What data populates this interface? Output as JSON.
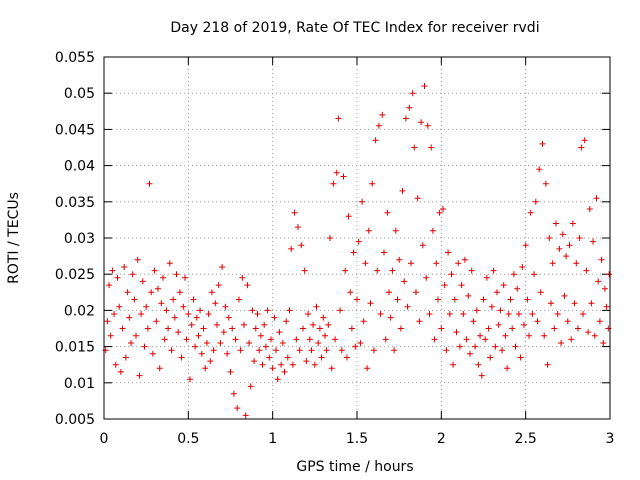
{
  "chart_data": {
    "type": "scatter",
    "title": "Day 218 of 2019, Rate Of TEC Index for receiver rvdi",
    "xlabel": "GPS time / hours",
    "ylabel": "ROTI / TECUs",
    "xlim": [
      0,
      3
    ],
    "ylim": [
      0.005,
      0.055
    ],
    "x_ticks": [
      0,
      0.5,
      1,
      1.5,
      2,
      2.5,
      3
    ],
    "x_tick_labels": [
      "0",
      "0.5",
      "1",
      "1.5",
      "2",
      "2.5",
      "3"
    ],
    "y_ticks": [
      0.005,
      0.01,
      0.015,
      0.02,
      0.025,
      0.03,
      0.035,
      0.04,
      0.045,
      0.05,
      0.055
    ],
    "y_tick_labels": [
      "0.005",
      "0.01",
      "0.015",
      "0.02",
      "0.025",
      "0.03",
      "0.035",
      "0.04",
      "0.045",
      "0.05",
      "0.055"
    ],
    "grid": true,
    "marker": "+",
    "color": "#e00000",
    "series": [
      {
        "name": "ROTI",
        "points": [
          [
            0.01,
            0.0145
          ],
          [
            0.02,
            0.0185
          ],
          [
            0.03,
            0.0235
          ],
          [
            0.04,
            0.0165
          ],
          [
            0.05,
            0.0255
          ],
          [
            0.06,
            0.0195
          ],
          [
            0.07,
            0.0125
          ],
          [
            0.08,
            0.0245
          ],
          [
            0.09,
            0.0205
          ],
          [
            0.1,
            0.0115
          ],
          [
            0.11,
            0.0175
          ],
          [
            0.12,
            0.026
          ],
          [
            0.13,
            0.0135
          ],
          [
            0.14,
            0.0225
          ],
          [
            0.15,
            0.019
          ],
          [
            0.16,
            0.0155
          ],
          [
            0.17,
            0.025
          ],
          [
            0.18,
            0.0215
          ],
          [
            0.19,
            0.0165
          ],
          [
            0.2,
            0.027
          ],
          [
            0.21,
            0.011
          ],
          [
            0.22,
            0.0195
          ],
          [
            0.23,
            0.024
          ],
          [
            0.24,
            0.015
          ],
          [
            0.25,
            0.0205
          ],
          [
            0.26,
            0.0175
          ],
          [
            0.27,
            0.0375
          ],
          [
            0.28,
            0.0225
          ],
          [
            0.29,
            0.014
          ],
          [
            0.3,
            0.0255
          ],
          [
            0.31,
            0.0185
          ],
          [
            0.32,
            0.023
          ],
          [
            0.33,
            0.012
          ],
          [
            0.34,
            0.021
          ],
          [
            0.35,
            0.0245
          ],
          [
            0.36,
            0.016
          ],
          [
            0.37,
            0.02
          ],
          [
            0.38,
            0.0175
          ],
          [
            0.39,
            0.0265
          ],
          [
            0.4,
            0.0145
          ],
          [
            0.41,
            0.0215
          ],
          [
            0.42,
            0.019
          ],
          [
            0.43,
            0.025
          ],
          [
            0.44,
            0.017
          ],
          [
            0.45,
            0.0225
          ],
          [
            0.46,
            0.0135
          ],
          [
            0.47,
            0.0205
          ],
          [
            0.48,
            0.0245
          ],
          [
            0.49,
            0.016
          ],
          [
            0.5,
            0.0195
          ],
          [
            0.51,
            0.0105
          ],
          [
            0.52,
            0.018
          ],
          [
            0.53,
            0.0215
          ],
          [
            0.54,
            0.015
          ],
          [
            0.55,
            0.019
          ],
          [
            0.56,
            0.0165
          ],
          [
            0.57,
            0.02
          ],
          [
            0.58,
            0.014
          ],
          [
            0.59,
            0.0175
          ],
          [
            0.6,
            0.012
          ],
          [
            0.61,
            0.0155
          ],
          [
            0.62,
            0.0195
          ],
          [
            0.63,
            0.013
          ],
          [
            0.64,
            0.0225
          ],
          [
            0.65,
            0.0145
          ],
          [
            0.66,
            0.021
          ],
          [
            0.67,
            0.018
          ],
          [
            0.68,
            0.0235
          ],
          [
            0.69,
            0.0155
          ],
          [
            0.7,
            0.026
          ],
          [
            0.71,
            0.017
          ],
          [
            0.72,
            0.0205
          ],
          [
            0.73,
            0.014
          ],
          [
            0.74,
            0.019
          ],
          [
            0.75,
            0.0115
          ],
          [
            0.76,
            0.0175
          ],
          [
            0.77,
            0.0085
          ],
          [
            0.78,
            0.016
          ],
          [
            0.79,
            0.0065
          ],
          [
            0.8,
            0.0215
          ],
          [
            0.81,
            0.0145
          ],
          [
            0.82,
            0.0245
          ],
          [
            0.83,
            0.018
          ],
          [
            0.84,
            0.0055
          ],
          [
            0.85,
            0.0235
          ],
          [
            0.86,
            0.0155
          ],
          [
            0.87,
            0.0095
          ],
          [
            0.88,
            0.02
          ],
          [
            0.89,
            0.013
          ],
          [
            0.9,
            0.0175
          ],
          [
            0.91,
            0.0195
          ],
          [
            0.92,
            0.0145
          ],
          [
            0.93,
            0.0165
          ],
          [
            0.94,
            0.0125
          ],
          [
            0.95,
            0.018
          ],
          [
            0.96,
            0.015
          ],
          [
            0.97,
            0.02
          ],
          [
            0.98,
            0.0135
          ],
          [
            0.99,
            0.016
          ],
          [
            1.0,
            0.012
          ],
          [
            1.01,
            0.019
          ],
          [
            1.02,
            0.0145
          ],
          [
            1.03,
            0.0105
          ],
          [
            1.04,
            0.017
          ],
          [
            1.05,
            0.0125
          ],
          [
            1.06,
            0.0155
          ],
          [
            1.07,
            0.0115
          ],
          [
            1.08,
            0.0185
          ],
          [
            1.09,
            0.0135
          ],
          [
            1.1,
            0.02
          ],
          [
            1.11,
            0.0285
          ],
          [
            1.12,
            0.0125
          ],
          [
            1.13,
            0.0335
          ],
          [
            1.14,
            0.016
          ],
          [
            1.15,
            0.0315
          ],
          [
            1.16,
            0.0145
          ],
          [
            1.17,
            0.029
          ],
          [
            1.18,
            0.0175
          ],
          [
            1.19,
            0.0255
          ],
          [
            1.2,
            0.013
          ],
          [
            1.21,
            0.0195
          ],
          [
            1.22,
            0.016
          ],
          [
            1.23,
            0.0145
          ],
          [
            1.24,
            0.018
          ],
          [
            1.25,
            0.0125
          ],
          [
            1.26,
            0.0205
          ],
          [
            1.27,
            0.0155
          ],
          [
            1.28,
            0.0175
          ],
          [
            1.29,
            0.0135
          ],
          [
            1.3,
            0.019
          ],
          [
            1.31,
            0.0165
          ],
          [
            1.32,
            0.0145
          ],
          [
            1.33,
            0.018
          ],
          [
            1.34,
            0.03
          ],
          [
            1.35,
            0.012
          ],
          [
            1.36,
            0.0375
          ],
          [
            1.37,
            0.016
          ],
          [
            1.38,
            0.039
          ],
          [
            1.39,
            0.0465
          ],
          [
            1.4,
            0.02
          ],
          [
            1.41,
            0.0145
          ],
          [
            1.42,
            0.0385
          ],
          [
            1.43,
            0.0255
          ],
          [
            1.44,
            0.0135
          ],
          [
            1.45,
            0.033
          ],
          [
            1.46,
            0.0225
          ],
          [
            1.47,
            0.0175
          ],
          [
            1.48,
            0.028
          ],
          [
            1.49,
            0.015
          ],
          [
            1.5,
            0.0215
          ],
          [
            1.51,
            0.0295
          ],
          [
            1.52,
            0.0155
          ],
          [
            1.53,
            0.035
          ],
          [
            1.54,
            0.0185
          ],
          [
            1.55,
            0.0265
          ],
          [
            1.56,
            0.012
          ],
          [
            1.57,
            0.031
          ],
          [
            1.58,
            0.021
          ],
          [
            1.59,
            0.0375
          ],
          [
            1.6,
            0.0145
          ],
          [
            1.61,
            0.0435
          ],
          [
            1.62,
            0.0255
          ],
          [
            1.63,
            0.0455
          ],
          [
            1.64,
            0.0195
          ],
          [
            1.65,
            0.047
          ],
          [
            1.66,
            0.028
          ],
          [
            1.67,
            0.016
          ],
          [
            1.68,
            0.0335
          ],
          [
            1.69,
            0.0225
          ],
          [
            1.7,
            0.019
          ],
          [
            1.71,
            0.0255
          ],
          [
            1.72,
            0.0145
          ],
          [
            1.73,
            0.031
          ],
          [
            1.74,
            0.0215
          ],
          [
            1.75,
            0.027
          ],
          [
            1.76,
            0.0175
          ],
          [
            1.77,
            0.0365
          ],
          [
            1.78,
            0.024
          ],
          [
            1.79,
            0.0465
          ],
          [
            1.8,
            0.0205
          ],
          [
            1.81,
            0.048
          ],
          [
            1.82,
            0.0265
          ],
          [
            1.83,
            0.05
          ],
          [
            1.84,
            0.0425
          ],
          [
            1.85,
            0.0225
          ],
          [
            1.86,
            0.0355
          ],
          [
            1.87,
            0.0185
          ],
          [
            1.88,
            0.046
          ],
          [
            1.89,
            0.029
          ],
          [
            1.9,
            0.051
          ],
          [
            1.91,
            0.0245
          ],
          [
            1.92,
            0.0455
          ],
          [
            1.93,
            0.0195
          ],
          [
            1.94,
            0.0425
          ],
          [
            1.95,
            0.031
          ],
          [
            1.96,
            0.016
          ],
          [
            1.97,
            0.0265
          ],
          [
            1.98,
            0.0215
          ],
          [
            1.99,
            0.0335
          ],
          [
            2.0,
            0.0175
          ],
          [
            2.01,
            0.034
          ],
          [
            2.02,
            0.0235
          ],
          [
            2.03,
            0.0145
          ],
          [
            2.04,
            0.028
          ],
          [
            2.05,
            0.0195
          ],
          [
            2.06,
            0.025
          ],
          [
            2.07,
            0.0125
          ],
          [
            2.08,
            0.0215
          ],
          [
            2.09,
            0.017
          ],
          [
            2.1,
            0.0265
          ],
          [
            2.11,
            0.015
          ],
          [
            2.12,
            0.0235
          ],
          [
            2.13,
            0.0195
          ],
          [
            2.14,
            0.027
          ],
          [
            2.15,
            0.016
          ],
          [
            2.16,
            0.022
          ],
          [
            2.17,
            0.014
          ],
          [
            2.18,
            0.0255
          ],
          [
            2.19,
            0.0185
          ],
          [
            2.2,
            0.015
          ],
          [
            2.21,
            0.02
          ],
          [
            2.22,
            0.0125
          ],
          [
            2.23,
            0.0165
          ],
          [
            2.24,
            0.011
          ],
          [
            2.25,
            0.0215
          ],
          [
            2.26,
            0.016
          ],
          [
            2.27,
            0.0245
          ],
          [
            2.28,
            0.0175
          ],
          [
            2.29,
            0.0135
          ],
          [
            2.3,
            0.0205
          ],
          [
            2.31,
            0.0255
          ],
          [
            2.32,
            0.015
          ],
          [
            2.33,
            0.0225
          ],
          [
            2.34,
            0.018
          ],
          [
            2.35,
            0.02
          ],
          [
            2.36,
            0.0145
          ],
          [
            2.37,
            0.0235
          ],
          [
            2.38,
            0.0165
          ],
          [
            2.39,
            0.012
          ],
          [
            2.4,
            0.0195
          ],
          [
            2.41,
            0.0215
          ],
          [
            2.42,
            0.0175
          ],
          [
            2.43,
            0.025
          ],
          [
            2.44,
            0.015
          ],
          [
            2.45,
            0.023
          ],
          [
            2.46,
            0.0195
          ],
          [
            2.47,
            0.0135
          ],
          [
            2.48,
            0.026
          ],
          [
            2.49,
            0.018
          ],
          [
            2.5,
            0.029
          ],
          [
            2.51,
            0.0215
          ],
          [
            2.52,
            0.0165
          ],
          [
            2.53,
            0.0335
          ],
          [
            2.54,
            0.0195
          ],
          [
            2.55,
            0.025
          ],
          [
            2.56,
            0.035
          ],
          [
            2.57,
            0.0185
          ],
          [
            2.58,
            0.0395
          ],
          [
            2.59,
            0.0225
          ],
          [
            2.6,
            0.043
          ],
          [
            2.61,
            0.0165
          ],
          [
            2.62,
            0.0375
          ],
          [
            2.63,
            0.0125
          ],
          [
            2.64,
            0.03
          ],
          [
            2.65,
            0.021
          ],
          [
            2.66,
            0.0265
          ],
          [
            2.67,
            0.0175
          ],
          [
            2.68,
            0.032
          ],
          [
            2.69,
            0.0195
          ],
          [
            2.7,
            0.0285
          ],
          [
            2.71,
            0.0155
          ],
          [
            2.72,
            0.0305
          ],
          [
            2.73,
            0.022
          ],
          [
            2.74,
            0.0275
          ],
          [
            2.75,
            0.0185
          ],
          [
            2.76,
            0.029
          ],
          [
            2.77,
            0.016
          ],
          [
            2.78,
            0.032
          ],
          [
            2.79,
            0.021
          ],
          [
            2.8,
            0.0265
          ],
          [
            2.81,
            0.0175
          ],
          [
            2.82,
            0.03
          ],
          [
            2.83,
            0.0425
          ],
          [
            2.84,
            0.0195
          ],
          [
            2.85,
            0.0435
          ],
          [
            2.86,
            0.0255
          ],
          [
            2.87,
            0.017
          ],
          [
            2.88,
            0.034
          ],
          [
            2.89,
            0.021
          ],
          [
            2.9,
            0.0295
          ],
          [
            2.91,
            0.0165
          ],
          [
            2.92,
            0.0355
          ],
          [
            2.93,
            0.024
          ],
          [
            2.94,
            0.0185
          ],
          [
            2.95,
            0.027
          ],
          [
            2.96,
            0.0155
          ],
          [
            2.97,
            0.023
          ],
          [
            2.98,
            0.0205
          ],
          [
            2.99,
            0.0175
          ],
          [
            2.995,
            0.025
          ]
        ]
      }
    ]
  }
}
